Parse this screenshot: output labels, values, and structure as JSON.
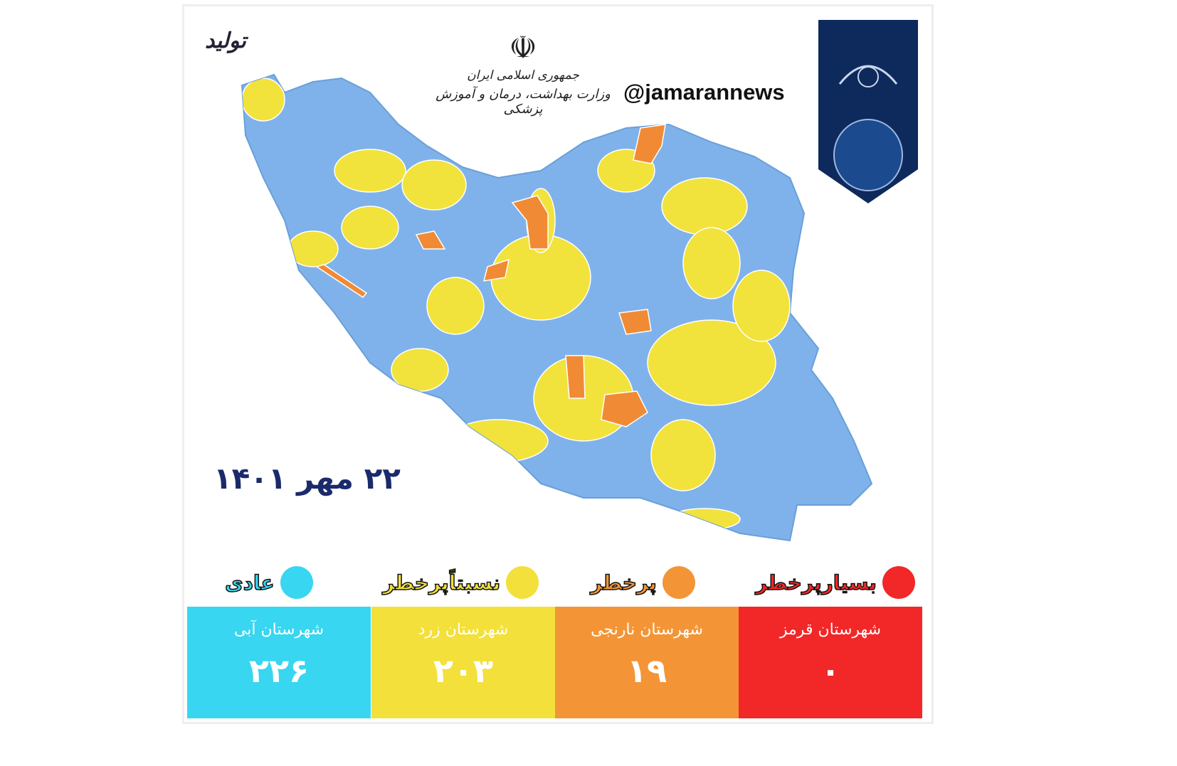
{
  "header": {
    "ministry_line1": "جمهوری اسلامی ایران",
    "ministry_line2": "وزارت بهداشت، درمان و آموزش پزشکی",
    "emblem_icon": "iran-emblem-icon",
    "handle": "@jamarannews",
    "logo_text": "تولید",
    "banner_icon": "calligraphy-banner"
  },
  "date": "۲۲ مهر ۱۴۰۱",
  "colors": {
    "blue": "#38d6f0",
    "yellow": "#f3e03a",
    "orange": "#f39537",
    "red": "#f22727",
    "map_blue": "#7fb2ea",
    "map_yellow": "#f2e23c",
    "map_orange": "#f18a35"
  },
  "legend": [
    {
      "label": "بسیارپرخطر",
      "color": "#f22727"
    },
    {
      "label": "پرخطر",
      "color": "#f39537"
    },
    {
      "label": "نسبتاًپرخطر",
      "color": "#f3e03a"
    },
    {
      "label": "عادی",
      "color": "#38d6f0"
    }
  ],
  "counts": [
    {
      "title": "شهرستان قرمز",
      "value": "۰",
      "color": "#f22727"
    },
    {
      "title": "شهرستان نارنجی",
      "value": "۱۹",
      "color": "#f39537"
    },
    {
      "title": "شهرستان زرد",
      "value": "۲۰۳",
      "color": "#f3e03a"
    },
    {
      "title": "شهرستان آبی",
      "value": "۲۲۶",
      "color": "#38d6f0"
    }
  ]
}
